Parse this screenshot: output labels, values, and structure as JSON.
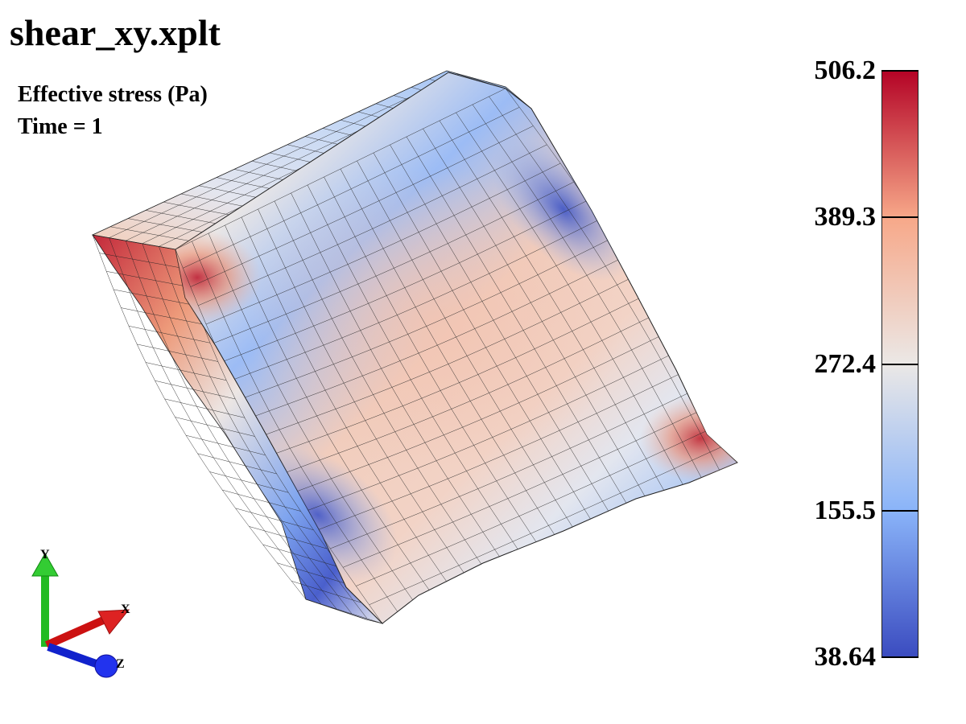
{
  "viewer": {
    "file_title": "shear_xy.xplt",
    "field_label": "Effective stress (Pa)",
    "time_label": "Time = 1"
  },
  "colorbar": {
    "ticks": [
      {
        "label": "506.2",
        "value": 506.2
      },
      {
        "label": "389.3",
        "value": 389.3
      },
      {
        "label": "272.4",
        "value": 272.4
      },
      {
        "label": "155.5",
        "value": 155.5
      },
      {
        "label": "38.64",
        "value": 38.64
      }
    ],
    "colors": {
      "max": "#b40426",
      "upper": "#f7a889",
      "mid": "#ebe8e6",
      "lower": "#8ab4f9",
      "min": "#3b4cc0"
    }
  },
  "triad": {
    "x_label": "X",
    "y_label": "Y",
    "z_label": "Z",
    "x_color": "#cc1111",
    "y_color": "#22bb22",
    "z_color": "#1122cc"
  }
}
